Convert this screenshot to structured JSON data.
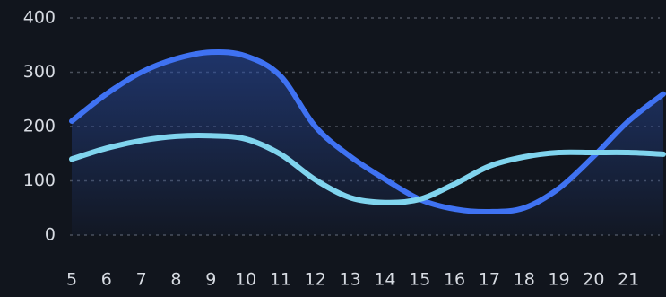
{
  "chart_data": {
    "type": "line",
    "categories": [
      "5",
      "6",
      "7",
      "8",
      "9",
      "10",
      "11",
      "12",
      "13",
      "14",
      "15",
      "16",
      "17",
      "18",
      "19",
      "20",
      "21",
      null
    ],
    "series": [
      {
        "color": "#3f72f2",
        "values": [
          210,
          260,
          300,
          325,
          337,
          330,
          293,
          200,
          145,
          103,
          66,
          48,
          43,
          50,
          86,
          145,
          210,
          260
        ]
      },
      {
        "color": "#80d4ee",
        "values": [
          140,
          160,
          174,
          182,
          183,
          177,
          149,
          102,
          69,
          60,
          66,
          94,
          127,
          144,
          152,
          152,
          152,
          149
        ]
      }
    ],
    "ylim": [
      0,
      400
    ],
    "yticks": [
      0,
      100,
      200,
      300,
      400
    ],
    "grid": true
  }
}
